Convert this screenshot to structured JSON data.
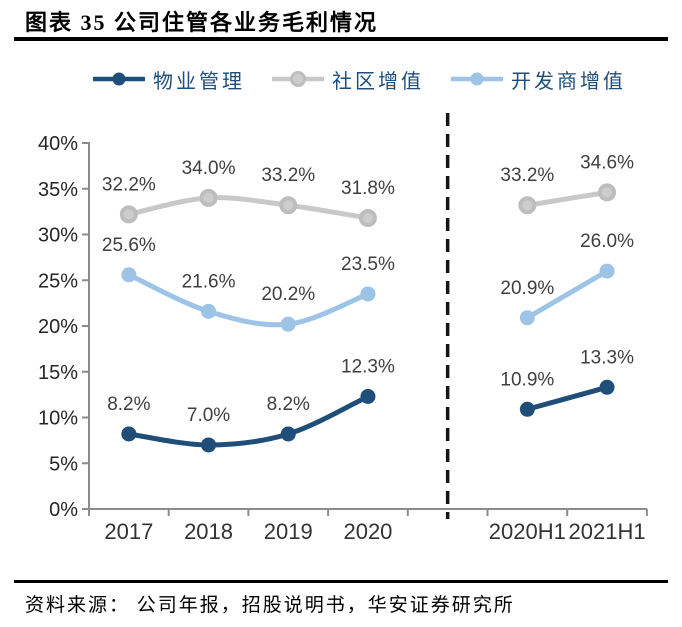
{
  "header": {
    "title": "图表 35  公司住管各业务毛利情况"
  },
  "legend": {
    "items": [
      {
        "label": "物业管理",
        "color": "#1F4E79"
      },
      {
        "label": "社区增值",
        "color": "#C8C8C8"
      },
      {
        "label": "开发商增值",
        "color": "#9DC3E6"
      }
    ]
  },
  "chart_data": {
    "type": "line",
    "title": "公司住管各业务毛利情况",
    "categories": [
      "2017",
      "2018",
      "2019",
      "2020",
      "2020H1",
      "2021H1"
    ],
    "left_group_count": 4,
    "divider_after_category": "2020",
    "series": [
      {
        "name": "物业管理",
        "color": "#1F4E79",
        "marker": "solid",
        "values": [
          8.2,
          7.0,
          8.2,
          12.3,
          10.9,
          13.3
        ],
        "labels": [
          "8.2%",
          "7.0%",
          "8.2%",
          "12.3%",
          "10.9%",
          "13.3%"
        ]
      },
      {
        "name": "社区增值",
        "color": "#C8C8C8",
        "marker": "ring",
        "marker_fill": "#CDCDCD",
        "marker_stroke": "#BDBDBD",
        "values": [
          32.2,
          34.0,
          33.2,
          31.8,
          33.2,
          34.6
        ],
        "labels": [
          "32.2%",
          "34.0%",
          "33.2%",
          "31.8%",
          "33.2%",
          "34.6%"
        ]
      },
      {
        "name": "开发商增值",
        "color": "#9DC3E6",
        "marker": "solid",
        "values": [
          25.6,
          21.6,
          20.2,
          23.5,
          20.9,
          26.0
        ],
        "labels": [
          "25.6%",
          "21.6%",
          "20.2%",
          "23.5%",
          "20.9%",
          "26.0%"
        ]
      }
    ],
    "y_axis": {
      "min": 0,
      "max": 40,
      "step": 5,
      "ticks": [
        "0%",
        "5%",
        "10%",
        "15%",
        "20%",
        "25%",
        "30%",
        "35%",
        "40%"
      ]
    },
    "grid": "off",
    "legend_position": "top"
  },
  "footer": {
    "source": "资料来源： 公司年报，招股说明书，华安证券研究所"
  },
  "colors": {
    "accent_navy": "#1F4E79",
    "light_blue": "#9DC3E6",
    "gray": "#C8C8C8",
    "axis": "#8C8C8C",
    "divider": "#141414",
    "label_text": "#3F3F3F"
  }
}
